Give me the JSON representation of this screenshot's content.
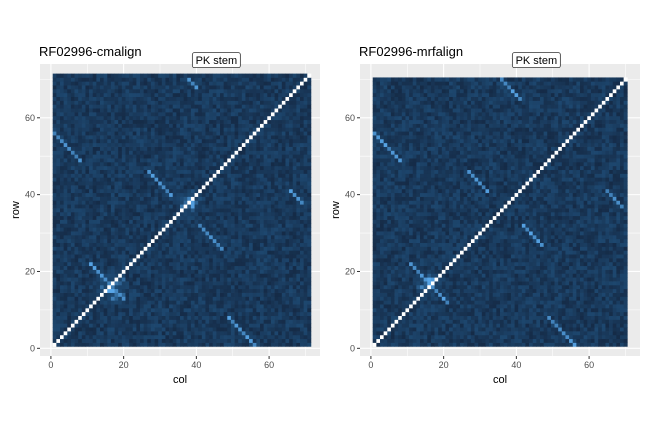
{
  "chart_data": [
    {
      "type": "heatmap",
      "title": "RF02996-cmalign",
      "xlabel": "col",
      "ylabel": "row",
      "annotation": "PK stem",
      "grid": true,
      "xlim": [
        -3,
        74
      ],
      "ylim": [
        -2,
        74
      ],
      "matrix_size": 71,
      "x_ticks": [
        0,
        20,
        40,
        60
      ],
      "y_ticks": [
        0,
        20,
        40,
        60
      ],
      "annotation_anchor": {
        "x": 45.5,
        "y": 75
      },
      "color_scale": {
        "low": "#152b47",
        "mid": "#1e4a73",
        "high": "#58a6e8"
      },
      "diagonal_color": "#ffffff",
      "segments": [
        {
          "x0": 1,
          "y0": 56,
          "x1": 8,
          "y1": 49
        },
        {
          "x0": 27,
          "y0": 46,
          "x1": 33,
          "y1": 40
        },
        {
          "x0": 38,
          "y0": 70,
          "x1": 40,
          "y1": 68
        },
        {
          "x0": 41,
          "y0": 32,
          "x1": 47,
          "y1": 26
        },
        {
          "x0": 66,
          "y0": 41,
          "x1": 69,
          "y1": 38
        },
        {
          "x0": 11,
          "y0": 22,
          "x1": 20,
          "y1": 13
        },
        {
          "x0": 49,
          "y0": 8,
          "x1": 57,
          "y1": 0
        }
      ],
      "diffuse": [
        {
          "x": 17,
          "y": 16,
          "r": 5
        },
        {
          "x": 38,
          "y": 38,
          "r": 4
        }
      ]
    },
    {
      "type": "heatmap",
      "title": "RF02996-mrfalign",
      "xlabel": "col",
      "ylabel": "row",
      "annotation": "PK stem",
      "grid": true,
      "xlim": [
        -3,
        74
      ],
      "ylim": [
        -2,
        74
      ],
      "matrix_size": 70,
      "x_ticks": [
        0,
        20,
        40,
        60
      ],
      "y_ticks": [
        0,
        20,
        40,
        60
      ],
      "annotation_anchor": {
        "x": 45.5,
        "y": 75
      },
      "color_scale": {
        "low": "#152b47",
        "mid": "#1e4a73",
        "high": "#58a6e8"
      },
      "diagonal_color": "#ffffff",
      "segments": [
        {
          "x0": 1,
          "y0": 56,
          "x1": 8,
          "y1": 49
        },
        {
          "x0": 27,
          "y0": 46,
          "x1": 32,
          "y1": 41
        },
        {
          "x0": 36,
          "y0": 70,
          "x1": 41,
          "y1": 65
        },
        {
          "x0": 42,
          "y0": 32,
          "x1": 47,
          "y1": 27
        },
        {
          "x0": 65,
          "y0": 41,
          "x1": 69,
          "y1": 37
        },
        {
          "x0": 11,
          "y0": 22,
          "x1": 21,
          "y1": 12
        },
        {
          "x0": 49,
          "y0": 8,
          "x1": 56,
          "y1": 1
        }
      ],
      "diffuse": [
        {
          "x": 16,
          "y": 17,
          "r": 4
        }
      ]
    }
  ]
}
